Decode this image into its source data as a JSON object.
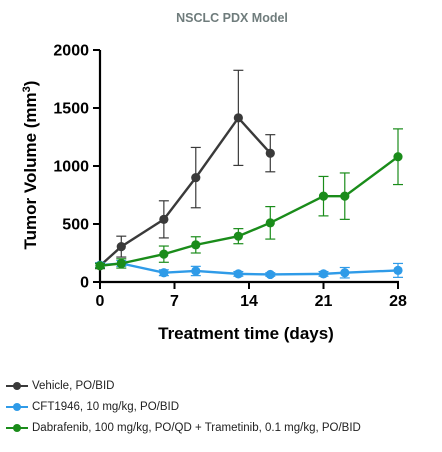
{
  "chart_data": {
    "type": "line",
    "title": "NSCLC PDX Model",
    "xlabel": "Treatment time (days)",
    "ylabel": "Tumor Volume (mm³)",
    "ylabel_base": "Tumor Volume (mm",
    "ylabel_sup": "3",
    "ylabel_end": ")",
    "xlim": [
      0,
      28
    ],
    "ylim": [
      0,
      2000
    ],
    "xticks": [
      "0",
      "7",
      "14",
      "21",
      "28"
    ],
    "xtick_values": [
      0,
      7,
      14,
      21,
      28
    ],
    "yticks": [
      "0",
      "500",
      "1000",
      "1500",
      "2000"
    ],
    "ytick_values": [
      0,
      500,
      1000,
      1500,
      2000
    ],
    "grid": false,
    "legend_position": "bottom",
    "series": [
      {
        "name": "Vehicle, PO/BID",
        "color": "#3a3a3a",
        "x": [
          0,
          2,
          6,
          9,
          13,
          16
        ],
        "y": [
          140,
          305,
          540,
          900,
          1415,
          1110
        ],
        "err": [
          25,
          90,
          160,
          260,
          410,
          160
        ]
      },
      {
        "name": "CFT1946, 10 mg/kg, PO/BID",
        "color": "#2f9be8",
        "x": [
          0,
          2,
          6,
          9,
          13,
          16,
          21,
          23,
          28
        ],
        "y": [
          145,
          160,
          80,
          95,
          70,
          65,
          70,
          80,
          100
        ],
        "err": [
          20,
          25,
          25,
          40,
          20,
          15,
          20,
          45,
          60
        ]
      },
      {
        "name": "Dabrafenib, 100 mg/kg, PO/QD + Trametinib, 0.1 mg/kg, PO/BID",
        "color": "#1a8c1a",
        "x": [
          0,
          2,
          6,
          9,
          13,
          16,
          21,
          23,
          28
        ],
        "y": [
          140,
          160,
          240,
          320,
          395,
          510,
          740,
          740,
          1080
        ],
        "err": [
          20,
          40,
          70,
          70,
          65,
          140,
          170,
          200,
          240
        ]
      }
    ]
  }
}
